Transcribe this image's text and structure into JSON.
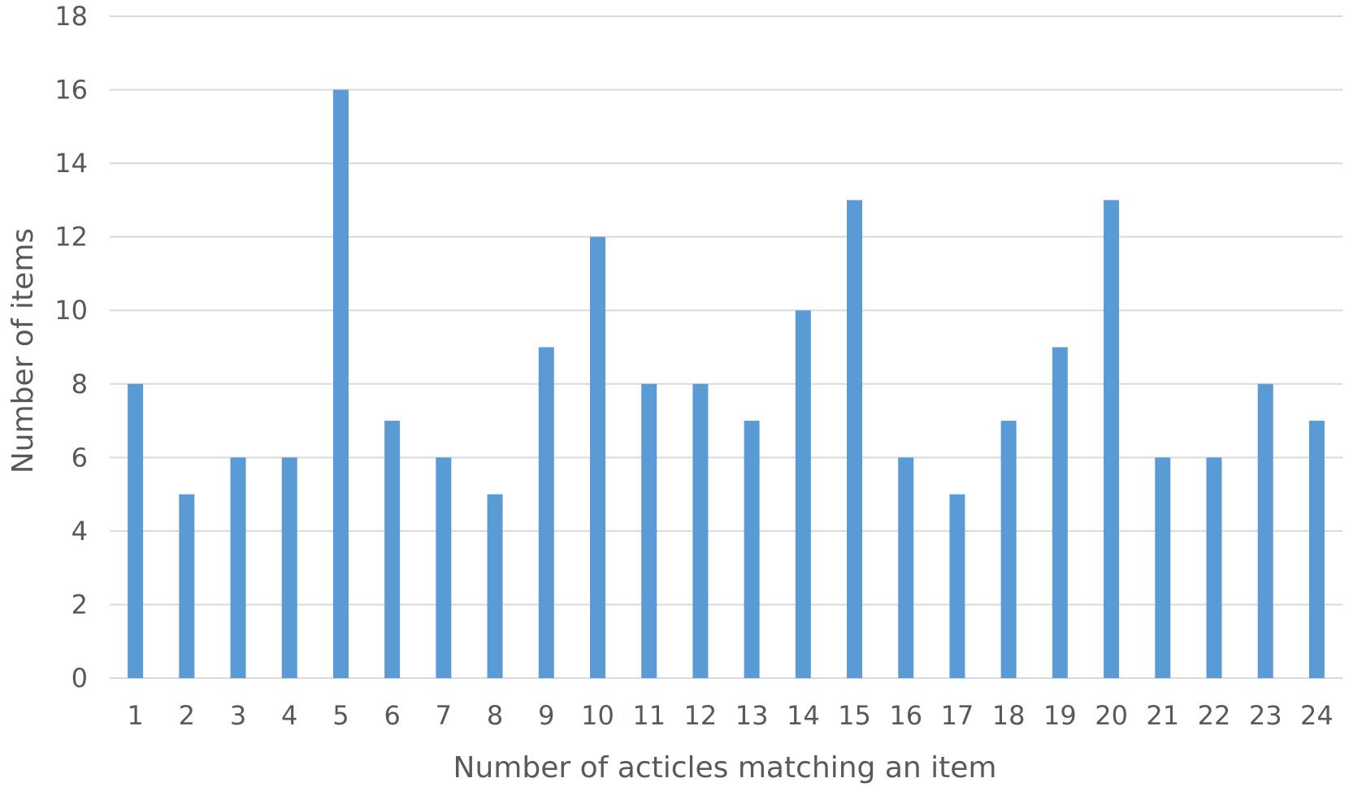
{
  "chart_data": {
    "type": "bar",
    "title": "",
    "xlabel": "Number of acticles matching an item",
    "ylabel": "Number of items",
    "categories": [
      "1",
      "2",
      "3",
      "4",
      "5",
      "6",
      "7",
      "8",
      "9",
      "10",
      "11",
      "12",
      "13",
      "14",
      "15",
      "16",
      "17",
      "18",
      "19",
      "20",
      "21",
      "22",
      "23",
      "24"
    ],
    "values": [
      8,
      5,
      6,
      6,
      16,
      7,
      6,
      5,
      9,
      12,
      8,
      8,
      7,
      10,
      13,
      6,
      5,
      7,
      9,
      13,
      6,
      6,
      8,
      7
    ],
    "ylim": [
      0,
      18
    ],
    "yticks": [
      "0",
      "2",
      "4",
      "6",
      "8",
      "10",
      "12",
      "14",
      "16",
      "18"
    ],
    "grid": true,
    "legend": "none",
    "bar_color": "#5b9bd5"
  }
}
